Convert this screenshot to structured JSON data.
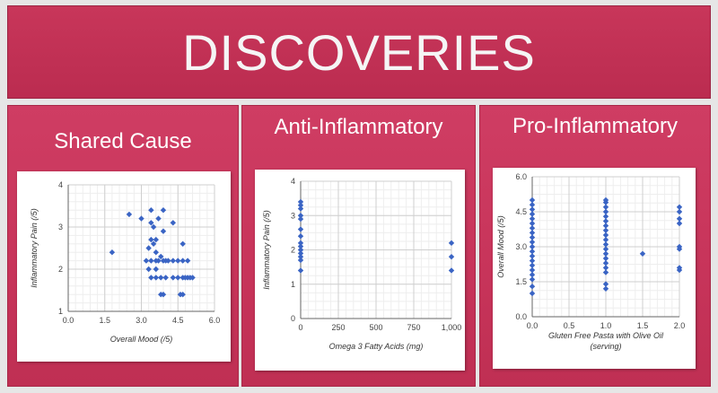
{
  "header": {
    "title": "DISCOVERIES"
  },
  "panels": [
    {
      "title": "Shared Cause"
    },
    {
      "title": "Anti-Inflammatory"
    },
    {
      "title": "Pro-Inflammatory"
    }
  ],
  "colors": {
    "banner": "#c8365a",
    "panel": "#c7345a",
    "marker": "#3a64c4",
    "grid": "#dddddd"
  },
  "chart_data": [
    {
      "type": "scatter",
      "title": "",
      "xlabel": "Overall Mood (/5)",
      "ylabel": "Inflammatory Pain (/5)",
      "xlim": [
        0,
        6
      ],
      "ylim": [
        1,
        4
      ],
      "xticks": [
        0,
        1.5,
        3,
        4.5,
        6
      ],
      "xtick_labels": [
        "0.0",
        "1.5",
        "3.0",
        "4.5",
        "6.0"
      ],
      "yticks": [
        1,
        2,
        3,
        4
      ],
      "ytick_labels": [
        "1",
        "2",
        "3",
        "4"
      ],
      "grid": true,
      "marker": "diamond",
      "points": [
        [
          1.8,
          2.4
        ],
        [
          2.5,
          3.3
        ],
        [
          3.0,
          3.2
        ],
        [
          3.2,
          2.2
        ],
        [
          3.3,
          2.5
        ],
        [
          3.3,
          2.0
        ],
        [
          3.4,
          3.4
        ],
        [
          3.4,
          3.1
        ],
        [
          3.4,
          2.7
        ],
        [
          3.4,
          2.2
        ],
        [
          3.4,
          1.8
        ],
        [
          3.5,
          3.0
        ],
        [
          3.5,
          2.6
        ],
        [
          3.6,
          2.7
        ],
        [
          3.6,
          2.4
        ],
        [
          3.6,
          2.2
        ],
        [
          3.6,
          2.0
        ],
        [
          3.6,
          1.8
        ],
        [
          3.7,
          3.2
        ],
        [
          3.7,
          2.2
        ],
        [
          3.8,
          2.3
        ],
        [
          3.8,
          1.8
        ],
        [
          3.8,
          1.4
        ],
        [
          3.9,
          3.4
        ],
        [
          3.9,
          2.9
        ],
        [
          3.9,
          2.2
        ],
        [
          3.9,
          1.4
        ],
        [
          4.0,
          2.2
        ],
        [
          4.0,
          1.8
        ],
        [
          4.1,
          2.2
        ],
        [
          4.3,
          3.1
        ],
        [
          4.3,
          2.2
        ],
        [
          4.3,
          1.8
        ],
        [
          4.5,
          2.2
        ],
        [
          4.5,
          1.8
        ],
        [
          4.6,
          1.4
        ],
        [
          4.7,
          2.6
        ],
        [
          4.7,
          2.2
        ],
        [
          4.7,
          1.8
        ],
        [
          4.7,
          1.4
        ],
        [
          4.8,
          1.8
        ],
        [
          4.9,
          2.2
        ],
        [
          4.9,
          1.8
        ],
        [
          5.0,
          1.8
        ],
        [
          5.1,
          1.8
        ]
      ]
    },
    {
      "type": "scatter",
      "title": "",
      "xlabel": "Omega 3 Fatty Acids (mg)",
      "ylabel": "Inflammatory Pain (/5)",
      "xlim": [
        0,
        1000
      ],
      "ylim": [
        0,
        4
      ],
      "xticks": [
        0,
        250,
        500,
        750,
        1000
      ],
      "xtick_labels": [
        "0",
        "250",
        "500",
        "750",
        "1,000"
      ],
      "yticks": [
        0,
        1,
        2,
        3,
        4
      ],
      "ytick_labels": [
        "0",
        "1",
        "2",
        "3",
        "4"
      ],
      "grid": true,
      "marker": "diamond",
      "points": [
        [
          0,
          3.4
        ],
        [
          0,
          3.3
        ],
        [
          0,
          3.2
        ],
        [
          0,
          3.0
        ],
        [
          0,
          2.9
        ],
        [
          0,
          2.6
        ],
        [
          0,
          2.4
        ],
        [
          0,
          2.2
        ],
        [
          0,
          2.1
        ],
        [
          0,
          2.0
        ],
        [
          0,
          1.9
        ],
        [
          0,
          1.8
        ],
        [
          0,
          1.7
        ],
        [
          0,
          1.4
        ],
        [
          1000,
          2.2
        ],
        [
          1000,
          1.8
        ],
        [
          1000,
          1.4
        ]
      ]
    },
    {
      "type": "scatter",
      "title": "",
      "xlabel": "Gluten Free Pasta with Olive Oil (serving)",
      "ylabel": "Overall Mood (/5)",
      "xlim": [
        0,
        2
      ],
      "ylim": [
        0,
        6
      ],
      "xticks": [
        0,
        0.5,
        1,
        1.5,
        2
      ],
      "xtick_labels": [
        "0.0",
        "0.5",
        "1.0",
        "1.5",
        "2.0"
      ],
      "yticks": [
        0,
        1.5,
        3,
        4.5,
        6
      ],
      "ytick_labels": [
        "0.0",
        "1.5",
        "3.0",
        "4.5",
        "6.0"
      ],
      "grid": true,
      "marker": "diamond",
      "points": [
        [
          0,
          1.0
        ],
        [
          0,
          1.3
        ],
        [
          0,
          1.6
        ],
        [
          0,
          1.8
        ],
        [
          0,
          2.0
        ],
        [
          0,
          2.2
        ],
        [
          0,
          2.4
        ],
        [
          0,
          2.6
        ],
        [
          0,
          2.8
        ],
        [
          0,
          3.0
        ],
        [
          0,
          3.2
        ],
        [
          0,
          3.4
        ],
        [
          0,
          3.6
        ],
        [
          0,
          3.8
        ],
        [
          0,
          4.0
        ],
        [
          0,
          4.2
        ],
        [
          0,
          4.4
        ],
        [
          0,
          4.6
        ],
        [
          0,
          4.8
        ],
        [
          0,
          5.0
        ],
        [
          1,
          1.2
        ],
        [
          1,
          1.4
        ],
        [
          1,
          1.9
        ],
        [
          1,
          2.1
        ],
        [
          1,
          2.3
        ],
        [
          1,
          2.5
        ],
        [
          1,
          2.7
        ],
        [
          1,
          2.9
        ],
        [
          1,
          3.1
        ],
        [
          1,
          3.3
        ],
        [
          1,
          3.5
        ],
        [
          1,
          3.7
        ],
        [
          1,
          3.9
        ],
        [
          1,
          4.1
        ],
        [
          1,
          4.3
        ],
        [
          1,
          4.5
        ],
        [
          1,
          4.7
        ],
        [
          1,
          4.9
        ],
        [
          1,
          5.0
        ],
        [
          1.5,
          2.7
        ],
        [
          2,
          2.0
        ],
        [
          2,
          2.1
        ],
        [
          2,
          2.9
        ],
        [
          2,
          3.0
        ],
        [
          2,
          4.0
        ],
        [
          2,
          4.2
        ],
        [
          2,
          4.5
        ],
        [
          2,
          4.7
        ]
      ]
    }
  ]
}
